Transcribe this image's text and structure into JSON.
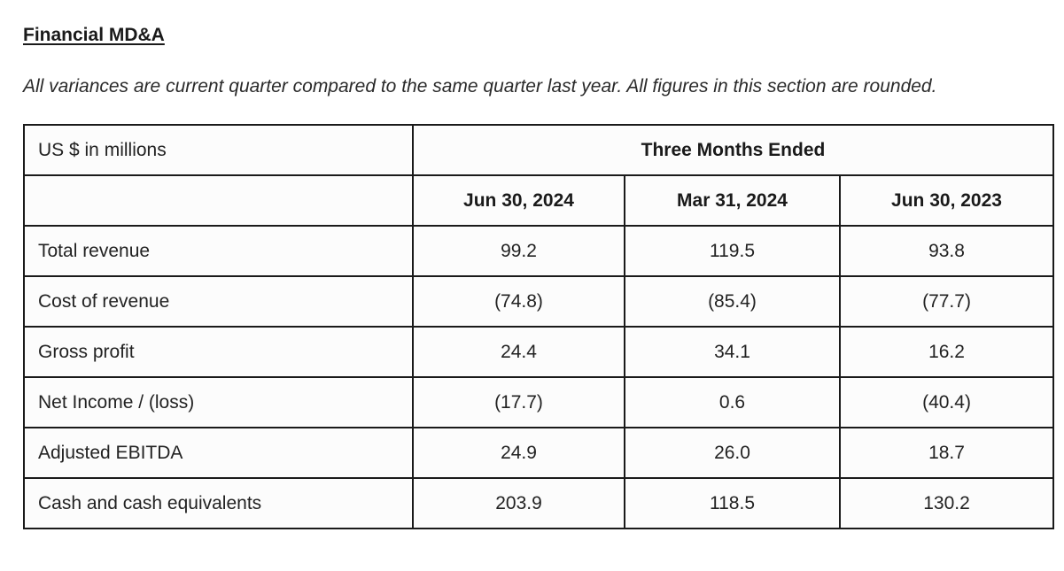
{
  "heading": "Financial MD&A",
  "note": "All variances are current quarter compared to the same quarter last year. All figures in this section are rounded.",
  "table": {
    "unit_label": "US $ in millions",
    "group_header": "Three Months Ended",
    "columns": [
      "Jun 30, 2024",
      "Mar 31, 2024",
      "Jun 30, 2023"
    ],
    "rows": [
      {
        "label": "Total revenue",
        "values": [
          "99.2",
          "119.5",
          "93.8"
        ]
      },
      {
        "label": "Cost of revenue",
        "values": [
          "(74.8)",
          "(85.4)",
          "(77.7)"
        ]
      },
      {
        "label": "Gross profit",
        "values": [
          "24.4",
          "34.1",
          "16.2"
        ]
      },
      {
        "label": "Net Income / (loss)",
        "values": [
          "(17.7)",
          "0.6",
          "(40.4)"
        ]
      },
      {
        "label": "Adjusted EBITDA",
        "values": [
          "24.9",
          "26.0",
          "18.7"
        ]
      },
      {
        "label": "Cash and cash equivalents",
        "values": [
          "203.9",
          "118.5",
          "130.2"
        ]
      }
    ]
  }
}
